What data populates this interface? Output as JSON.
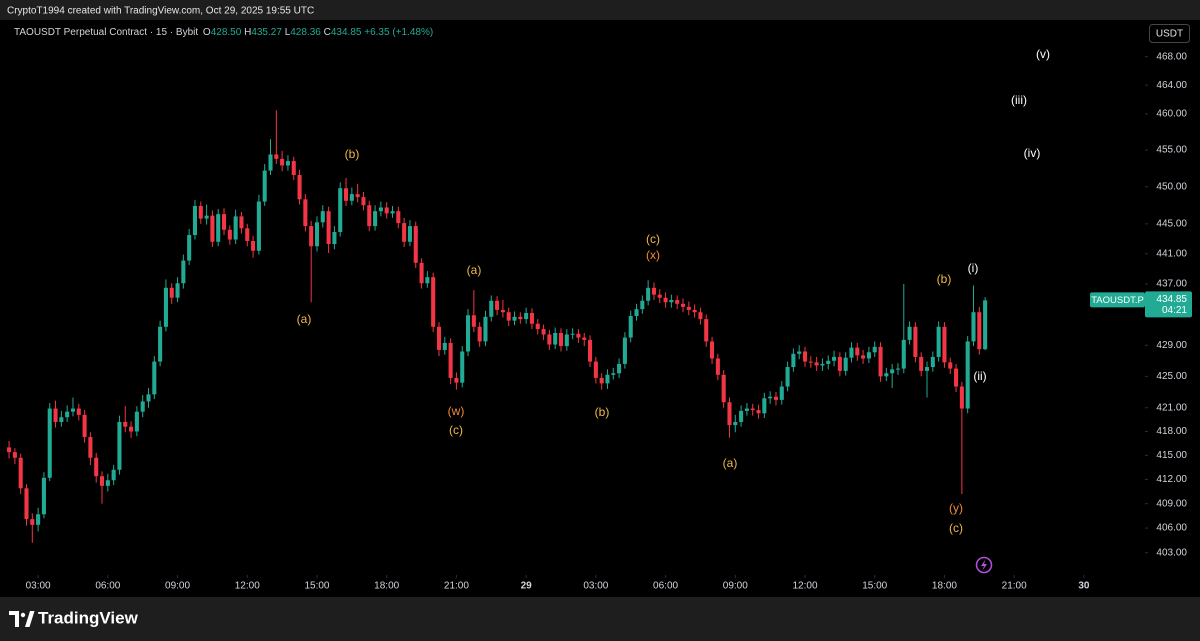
{
  "header": {
    "attribution": "CryptoT1994 created with TradingView.com, Oct 29, 2025 19:55 UTC",
    "symbol": "TAOUSDT Perpetual Contract · 15 · Bybit",
    "ohlc": [
      {
        "key": "O",
        "value": "428.50"
      },
      {
        "key": "H",
        "value": "435.27"
      },
      {
        "key": "L",
        "value": "428.36"
      },
      {
        "key": "C",
        "value": "434.85"
      }
    ],
    "change": "+6.35 (+1.48%)",
    "currency": "USDT",
    "brand": "TradingView"
  },
  "chart_data": {
    "type": "candlestick",
    "x": [
      1.75,
      2,
      2.25,
      2.5,
      2.75,
      3,
      3.25,
      3.5,
      3.75,
      4,
      4.25,
      4.5,
      4.75,
      5,
      5.25,
      5.5,
      5.75,
      6,
      6.25,
      6.5,
      6.75,
      7,
      7.25,
      7.5,
      7.75,
      8,
      8.25,
      8.5,
      8.75,
      9,
      9.25,
      9.5,
      9.75,
      10,
      10.25,
      10.5,
      10.75,
      11,
      11.25,
      11.5,
      11.75,
      12,
      12.25,
      12.5,
      12.75,
      13,
      13.25,
      13.5,
      13.75,
      14,
      14.25,
      14.5,
      14.75,
      15,
      15.25,
      15.5,
      15.75,
      16,
      16.25,
      16.5,
      16.75,
      17,
      17.25,
      17.5,
      17.75,
      18,
      18.25,
      18.5,
      18.75,
      19,
      19.25,
      19.5,
      19.75,
      20,
      20.25,
      20.5,
      20.75,
      21,
      21.25,
      21.5,
      21.75,
      22,
      22.25,
      22.5,
      22.75,
      23,
      23.25,
      23.5,
      23.75,
      24,
      24.25,
      24.5,
      24.75,
      25,
      25.25,
      25.5,
      25.75,
      26,
      26.25,
      26.5,
      26.75,
      27,
      27.25,
      27.5,
      27.75,
      28,
      28.25,
      28.5,
      28.75,
      29,
      29.25,
      29.5,
      29.75,
      30,
      30.25,
      30.5,
      30.75,
      31,
      31.25,
      31.5,
      31.75,
      32,
      32.25,
      32.5,
      32.75,
      33,
      33.25,
      33.5,
      33.75,
      34,
      34.25,
      34.5,
      34.75,
      35,
      35.25,
      35.5,
      35.75,
      36,
      36.25,
      36.5,
      36.75,
      37,
      37.25,
      37.5,
      37.75,
      38,
      38.25,
      38.5,
      38.75,
      39,
      39.25,
      39.5,
      39.75,
      40,
      40.25,
      40.5,
      40.75,
      41,
      41.25,
      41.5,
      41.75,
      42,
      42.25,
      42.5,
      42.75,
      43,
      43.25,
      43.5,
      43.75
    ],
    "open": [
      416.0,
      415.4,
      414.7,
      410.9,
      407.1,
      406.4,
      407.7,
      412.2,
      420.9,
      419.2,
      419.8,
      420.5,
      420.9,
      420.1,
      417.3,
      414.7,
      412.4,
      411.2,
      411.9,
      413.2,
      419.2,
      418.6,
      418.0,
      420.5,
      421.8,
      422.7,
      426.9,
      431.4,
      436.5,
      435.2,
      437.1,
      440.1,
      443.5,
      447.4,
      445.7,
      446.1,
      442.6,
      446.3,
      444.2,
      442.9,
      446.0,
      444.4,
      442.7,
      441.4,
      448.0,
      452.2,
      454.4,
      453.8,
      452.9,
      453.5,
      451.6,
      448.3,
      444.7,
      442.0,
      445.2,
      446.7,
      442.3,
      443.9,
      449.8,
      448.1,
      449.0,
      448.6,
      447.5,
      444.7,
      446.7,
      447.2,
      446.4,
      446.7,
      445.1,
      442.6,
      444.7,
      439.8,
      437.1,
      437.9,
      431.4,
      428.4,
      429.3,
      424.8,
      424.2,
      428.2,
      432.9,
      431.4,
      429.5,
      432.7,
      434.8,
      433.6,
      433.3,
      432.2,
      432.7,
      432.4,
      433.2,
      431.8,
      431.1,
      430.4,
      429.1,
      430.6,
      428.9,
      430.4,
      430.5,
      430.0,
      429.7,
      426.9,
      424.8,
      424.1,
      425.2,
      425.4,
      426.6,
      430.0,
      432.8,
      433.7,
      434.8,
      436.5,
      435.6,
      435.2,
      434.6,
      434.9,
      434.4,
      434.0,
      433.6,
      433.3,
      432.4,
      429.5,
      427.3,
      425.2,
      421.7,
      418.8,
      419.2,
      420.6,
      420.9,
      420.7,
      420.3,
      422.2,
      422.4,
      422.0,
      423.7,
      426.2,
      427.9,
      428.2,
      426.9,
      426.8,
      426.4,
      426.6,
      427.0,
      427.5,
      425.7,
      427.4,
      428.7,
      427.7,
      427.3,
      428.1,
      428.8,
      425.0,
      425.4,
      425.9,
      426.0,
      429.7,
      431.4,
      427.5,
      425.7,
      426.2,
      427.5,
      431.4,
      426.8,
      426.0,
      423.7,
      420.9,
      429.5,
      433.3,
      428.5
    ],
    "high": [
      416.8,
      415.9,
      415.2,
      411.4,
      407.8,
      408.5,
      412.9,
      421.6,
      421.9,
      420.6,
      421.3,
      422.3,
      421.5,
      420.7,
      417.9,
      415.3,
      413.0,
      412.7,
      413.8,
      420.0,
      421.2,
      419.3,
      421.2,
      422.6,
      423.5,
      427.6,
      432.2,
      437.6,
      437.1,
      437.9,
      440.9,
      444.3,
      448.2,
      448.0,
      447.6,
      446.8,
      447.0,
      447.1,
      444.8,
      446.9,
      446.6,
      445.0,
      443.4,
      448.9,
      453.1,
      456.5,
      460.5,
      454.9,
      454.3,
      454.1,
      452.3,
      449.0,
      445.4,
      446.0,
      447.5,
      447.3,
      444.7,
      450.6,
      451.2,
      449.9,
      450.4,
      449.3,
      448.1,
      447.5,
      448.0,
      447.9,
      447.4,
      447.3,
      445.8,
      445.5,
      445.3,
      440.4,
      438.7,
      438.5,
      432.0,
      430.1,
      429.9,
      425.5,
      428.9,
      433.7,
      436.2,
      432.0,
      433.5,
      435.5,
      435.4,
      434.9,
      433.9,
      433.4,
      433.3,
      433.9,
      433.8,
      432.4,
      431.7,
      431.0,
      431.3,
      431.2,
      431.1,
      431.2,
      431.1,
      430.6,
      430.3,
      427.5,
      425.4,
      425.9,
      426.1,
      427.3,
      430.7,
      433.5,
      434.4,
      435.5,
      437.5,
      437.2,
      436.3,
      435.9,
      435.6,
      435.5,
      435.1,
      434.7,
      434.3,
      433.9,
      433.0,
      430.1,
      427.9,
      425.8,
      422.3,
      420.1,
      421.3,
      421.6,
      421.5,
      421.4,
      422.9,
      423.1,
      423.0,
      424.4,
      426.9,
      428.6,
      429.0,
      428.8,
      427.6,
      427.5,
      427.3,
      427.7,
      428.3,
      428.1,
      428.1,
      429.4,
      429.3,
      428.4,
      428.8,
      429.5,
      429.4,
      426.1,
      426.6,
      426.7,
      437.0,
      432.1,
      432.0,
      428.1,
      426.9,
      428.2,
      432.1,
      432.0,
      427.4,
      426.6,
      424.3,
      430.2,
      436.8,
      434.0,
      435.27
    ],
    "low": [
      414.6,
      413.9,
      410.2,
      406.3,
      404.2,
      405.6,
      407.2,
      411.8,
      418.5,
      418.6,
      419.2,
      419.9,
      419.4,
      416.6,
      413.8,
      411.6,
      409.0,
      410.5,
      411.3,
      412.6,
      417.9,
      417.2,
      417.4,
      419.8,
      421.0,
      422.1,
      426.3,
      430.8,
      434.4,
      434.6,
      436.4,
      439.5,
      442.9,
      445.0,
      444.9,
      441.9,
      442.0,
      443.5,
      442.2,
      442.3,
      443.7,
      442.0,
      440.5,
      440.9,
      447.4,
      451.6,
      453.1,
      452.1,
      452.2,
      450.9,
      447.6,
      444.0,
      434.6,
      441.3,
      444.5,
      441.1,
      441.6,
      443.3,
      447.4,
      447.5,
      447.9,
      446.8,
      444.0,
      444.1,
      446.0,
      445.7,
      445.8,
      444.4,
      441.9,
      442.0,
      439.1,
      436.4,
      436.5,
      430.7,
      427.6,
      427.8,
      424.0,
      423.3,
      423.6,
      427.6,
      430.7,
      428.8,
      428.9,
      432.1,
      432.9,
      432.6,
      431.5,
      431.6,
      431.8,
      431.8,
      431.1,
      430.4,
      429.7,
      428.4,
      428.5,
      428.2,
      428.3,
      429.8,
      429.3,
      428.9,
      426.2,
      424.1,
      423.3,
      423.4,
      424.6,
      424.8,
      426.0,
      429.4,
      432.2,
      433.1,
      434.2,
      434.9,
      434.5,
      433.9,
      433.9,
      433.7,
      433.3,
      432.9,
      432.6,
      431.7,
      428.8,
      426.6,
      424.5,
      421.0,
      417.2,
      417.9,
      418.6,
      420.0,
      420.0,
      419.6,
      419.7,
      421.5,
      421.3,
      421.4,
      423.1,
      425.6,
      427.2,
      426.2,
      426.1,
      425.7,
      425.7,
      425.9,
      426.3,
      425.0,
      425.1,
      426.8,
      427.0,
      426.6,
      426.7,
      427.5,
      424.3,
      424.4,
      423.5,
      425.2,
      425.4,
      429.1,
      426.8,
      425.0,
      422.3,
      425.6,
      426.9,
      426.1,
      425.3,
      423.0,
      410.2,
      420.3,
      428.9,
      427.8,
      428.36
    ],
    "close": [
      415.4,
      414.7,
      410.9,
      407.1,
      406.4,
      407.7,
      412.2,
      420.9,
      419.2,
      419.8,
      420.5,
      420.9,
      420.1,
      417.3,
      414.7,
      412.4,
      411.2,
      411.9,
      413.2,
      419.2,
      418.6,
      418.0,
      420.5,
      421.8,
      422.7,
      426.9,
      431.4,
      436.5,
      435.2,
      437.1,
      440.1,
      443.5,
      447.4,
      445.7,
      446.1,
      442.6,
      446.3,
      444.2,
      442.9,
      446.0,
      444.4,
      442.7,
      441.4,
      448.0,
      452.2,
      454.4,
      453.8,
      452.9,
      453.5,
      451.6,
      448.3,
      444.7,
      442.0,
      445.2,
      446.7,
      442.3,
      443.9,
      449.8,
      448.1,
      449.0,
      448.6,
      447.5,
      444.7,
      446.7,
      447.2,
      446.4,
      446.7,
      445.1,
      442.6,
      444.7,
      439.8,
      437.1,
      437.9,
      431.4,
      428.4,
      429.3,
      424.8,
      424.2,
      428.2,
      432.9,
      431.4,
      429.5,
      432.7,
      434.8,
      433.6,
      433.3,
      432.2,
      432.7,
      432.4,
      433.2,
      431.8,
      431.1,
      430.4,
      429.1,
      430.6,
      428.9,
      430.4,
      430.5,
      430.0,
      429.7,
      426.9,
      424.8,
      424.1,
      425.2,
      425.4,
      426.6,
      430.0,
      432.8,
      433.7,
      434.8,
      436.5,
      435.6,
      435.2,
      434.6,
      434.9,
      434.4,
      434.0,
      433.6,
      433.3,
      432.4,
      429.5,
      427.3,
      425.2,
      421.7,
      418.8,
      419.2,
      420.6,
      420.9,
      420.7,
      420.3,
      422.2,
      422.4,
      422.0,
      423.7,
      426.2,
      427.9,
      428.2,
      426.9,
      426.8,
      426.4,
      426.6,
      427.0,
      427.5,
      425.7,
      427.4,
      428.7,
      427.7,
      427.3,
      428.1,
      428.8,
      425.0,
      425.4,
      425.9,
      426.0,
      429.7,
      431.4,
      427.5,
      425.7,
      426.2,
      427.5,
      431.4,
      426.8,
      426.0,
      423.7,
      420.9,
      429.5,
      433.3,
      428.5,
      434.85
    ],
    "xlim": [
      1.36,
      50.63
    ],
    "xticks": [
      {
        "value": 3,
        "label": "03:00"
      },
      {
        "value": 6,
        "label": "06:00"
      },
      {
        "value": 9,
        "label": "09:00"
      },
      {
        "value": 12,
        "label": "12:00"
      },
      {
        "value": 15,
        "label": "15:00"
      },
      {
        "value": 18,
        "label": "18:00"
      },
      {
        "value": 21,
        "label": "21:00"
      },
      {
        "value": 24,
        "label": "29"
      },
      {
        "value": 27,
        "label": "03:00"
      },
      {
        "value": 30,
        "label": "06:00"
      },
      {
        "value": 33,
        "label": "09:00"
      },
      {
        "value": 36,
        "label": "12:00"
      },
      {
        "value": 39,
        "label": "15:00"
      },
      {
        "value": 42,
        "label": "18:00"
      },
      {
        "value": 45,
        "label": "21:00"
      },
      {
        "value": 48,
        "label": "30"
      }
    ],
    "ylim": [
      400.3,
      473.2
    ],
    "yticks": [
      {
        "value": 468,
        "label": "468.00"
      },
      {
        "value": 464,
        "label": "464.00"
      },
      {
        "value": 460,
        "label": "460.00"
      },
      {
        "value": 455,
        "label": "455.00"
      },
      {
        "value": 450,
        "label": "450.00"
      },
      {
        "value": 445,
        "label": "445.00"
      },
      {
        "value": 441,
        "label": "441.00"
      },
      {
        "value": 437,
        "label": "437.00"
      },
      {
        "value": 429,
        "label": "429.00"
      },
      {
        "value": 425,
        "label": "425.00"
      },
      {
        "value": 421,
        "label": "421.00"
      },
      {
        "value": 418,
        "label": "418.00"
      },
      {
        "value": 415,
        "label": "415.00"
      },
      {
        "value": 412,
        "label": "412.00"
      },
      {
        "value": 409,
        "label": "409.00"
      },
      {
        "value": 406,
        "label": "406.00"
      },
      {
        "value": 403,
        "label": "403.00"
      }
    ],
    "log_scale": true,
    "grid": false,
    "up_color": "#22ab94",
    "down_color": "#f23645",
    "annotations": [
      {
        "text": "(a)",
        "color": "#f0b94d"
      },
      {
        "text": "(b)",
        "color": "#f0b94d"
      },
      {
        "text": "(w)",
        "color": "#f08c3a"
      },
      {
        "text": "(c)",
        "color": "#f0b94d"
      },
      {
        "text": "(a)",
        "color": "#f0b94d"
      },
      {
        "text": "(b)",
        "color": "#f0b94d"
      },
      {
        "text": "(c)",
        "color": "#f0b94d"
      },
      {
        "text": "(x)",
        "color": "#f08c3a"
      },
      {
        "text": "(a)",
        "color": "#f0b94d"
      },
      {
        "text": "(b)",
        "color": "#f0b94d"
      },
      {
        "text": "(i)",
        "color": "#ffffff"
      },
      {
        "text": "(ii)",
        "color": "#ffffff"
      },
      {
        "text": "(y)",
        "color": "#f08c3a"
      },
      {
        "text": "(c)",
        "color": "#f0b94d"
      },
      {
        "text": "(iii)",
        "color": "#ffffff"
      },
      {
        "text": "(iv)",
        "color": "#ffffff"
      },
      {
        "text": "(v)",
        "color": "#ffffff"
      }
    ],
    "price_tag": {
      "symbol": "TAOUSDT.P",
      "price": "434.85",
      "countdown": "04:21"
    }
  }
}
